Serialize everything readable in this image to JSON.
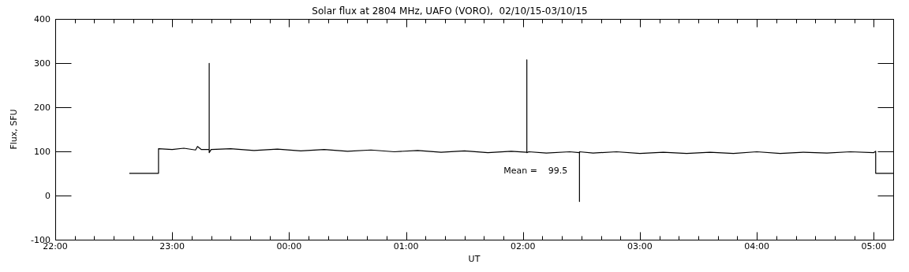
{
  "chart_data": {
    "type": "line",
    "title": "Solar flux at 2804 MHz, UAFO (VORO),  02/10/15-03/10/15",
    "xlabel": "UT",
    "ylabel": "Flux, SFU",
    "annotations": [
      "Mean =    99.5"
    ],
    "series": [
      {
        "color": "#000000",
        "x": [
          "--10-02T22:38",
          "--10-02T22:53",
          "--10-02T22:53",
          "--10-02T23:00",
          "--10-02T23:06",
          "--10-02T23:12",
          "--10-02T23:13",
          "--10-02T23:15",
          "--10-02T23:19",
          "--10-02T23:19",
          "--10-02T23:19",
          "--10-02T23:20",
          "--10-02T23:30",
          "--10-02T23:42",
          "--10-02T23:54",
          "--10-03T00:06",
          "--10-03T00:18",
          "--10-03T00:30",
          "--10-03T00:42",
          "--10-03T00:54",
          "--10-03T01:06",
          "--10-03T01:18",
          "--10-03T01:30",
          "--10-03T01:42",
          "--10-03T01:54",
          "--10-03T02:02",
          "--10-03T02:02",
          "--10-03T02:02",
          "--10-03T02:03",
          "--10-03T02:12",
          "--10-03T02:24",
          "--10-03T02:29",
          "--10-03T02:29",
          "--10-03T02:29",
          "--10-03T02:36",
          "--10-03T02:48",
          "--10-03T03:00",
          "--10-03T03:12",
          "--10-03T03:24",
          "--10-03T03:36",
          "--10-03T03:48",
          "--10-03T04:00",
          "--10-03T04:12",
          "--10-03T04:24",
          "--10-03T04:36",
          "--10-03T04:48",
          "--10-03T05:00",
          "--10-03T05:01",
          "--10-03T05:01",
          "--10-03T05:10"
        ],
        "values": [
          50,
          50,
          106,
          104,
          107,
          103,
          111,
          104,
          104,
          300,
          97,
          104,
          106,
          102,
          105,
          101,
          104,
          100,
          103,
          99,
          102,
          98,
          101,
          97,
          100,
          98,
          308,
          97,
          99,
          96,
          99,
          97,
          -14,
          99,
          96,
          99,
          95,
          98,
          95,
          98,
          95,
          99,
          95,
          98,
          96,
          99,
          97,
          100,
          50,
          50
        ]
      }
    ],
    "xlim": [
      "--10-02T22:00",
      "--10-03T05:10"
    ],
    "xticks": [
      {
        "value": "--10-02T22:00",
        "label": "22:00"
      },
      {
        "value": "--10-02T22:10",
        "label": null
      },
      {
        "value": "--10-02T22:20",
        "label": null
      },
      {
        "value": "--10-02T22:30",
        "label": null
      },
      {
        "value": "--10-02T22:40",
        "label": null
      },
      {
        "value": "--10-02T22:50",
        "label": null
      },
      {
        "value": "--10-02T23:00",
        "label": "23:00"
      },
      {
        "value": "--10-02T23:10",
        "label": null
      },
      {
        "value": "--10-02T23:20",
        "label": null
      },
      {
        "value": "--10-02T23:30",
        "label": null
      },
      {
        "value": "--10-02T23:40",
        "label": null
      },
      {
        "value": "--10-02T23:50",
        "label": null
      },
      {
        "value": "--10-03T00:00",
        "label": "00:00"
      },
      {
        "value": "--10-03T00:10",
        "label": null
      },
      {
        "value": "--10-03T00:20",
        "label": null
      },
      {
        "value": "--10-03T00:30",
        "label": null
      },
      {
        "value": "--10-03T00:40",
        "label": null
      },
      {
        "value": "--10-03T00:50",
        "label": null
      },
      {
        "value": "--10-03T01:00",
        "label": "01:00"
      },
      {
        "value": "--10-03T01:10",
        "label": null
      },
      {
        "value": "--10-03T01:20",
        "label": null
      },
      {
        "value": "--10-03T01:30",
        "label": null
      },
      {
        "value": "--10-03T01:40",
        "label": null
      },
      {
        "value": "--10-03T01:50",
        "label": null
      },
      {
        "value": "--10-03T02:00",
        "label": "02:00"
      },
      {
        "value": "--10-03T02:10",
        "label": null
      },
      {
        "value": "--10-03T02:20",
        "label": null
      },
      {
        "value": "--10-03T02:30",
        "label": null
      },
      {
        "value": "--10-03T02:40",
        "label": null
      },
      {
        "value": "--10-03T02:50",
        "label": null
      },
      {
        "value": "--10-03T03:00",
        "label": "03:00"
      },
      {
        "value": "--10-03T03:10",
        "label": null
      },
      {
        "value": "--10-03T03:20",
        "label": null
      },
      {
        "value": "--10-03T03:30",
        "label": null
      },
      {
        "value": "--10-03T03:40",
        "label": null
      },
      {
        "value": "--10-03T03:50",
        "label": null
      },
      {
        "value": "--10-03T04:00",
        "label": "04:00"
      },
      {
        "value": "--10-03T04:10",
        "label": null
      },
      {
        "value": "--10-03T04:20",
        "label": null
      },
      {
        "value": "--10-03T04:30",
        "label": null
      },
      {
        "value": "--10-03T04:40",
        "label": null
      },
      {
        "value": "--10-03T04:50",
        "label": null
      },
      {
        "value": "--10-03T05:00",
        "label": "05:00"
      },
      {
        "value": "--10-03T05:10",
        "label": null
      }
    ],
    "ylim": [
      -100,
      400
    ],
    "yticks": [
      -100,
      0,
      100,
      200,
      300,
      400
    ],
    "grid": false,
    "legend": false,
    "marker": "none",
    "line_style": "solid"
  }
}
